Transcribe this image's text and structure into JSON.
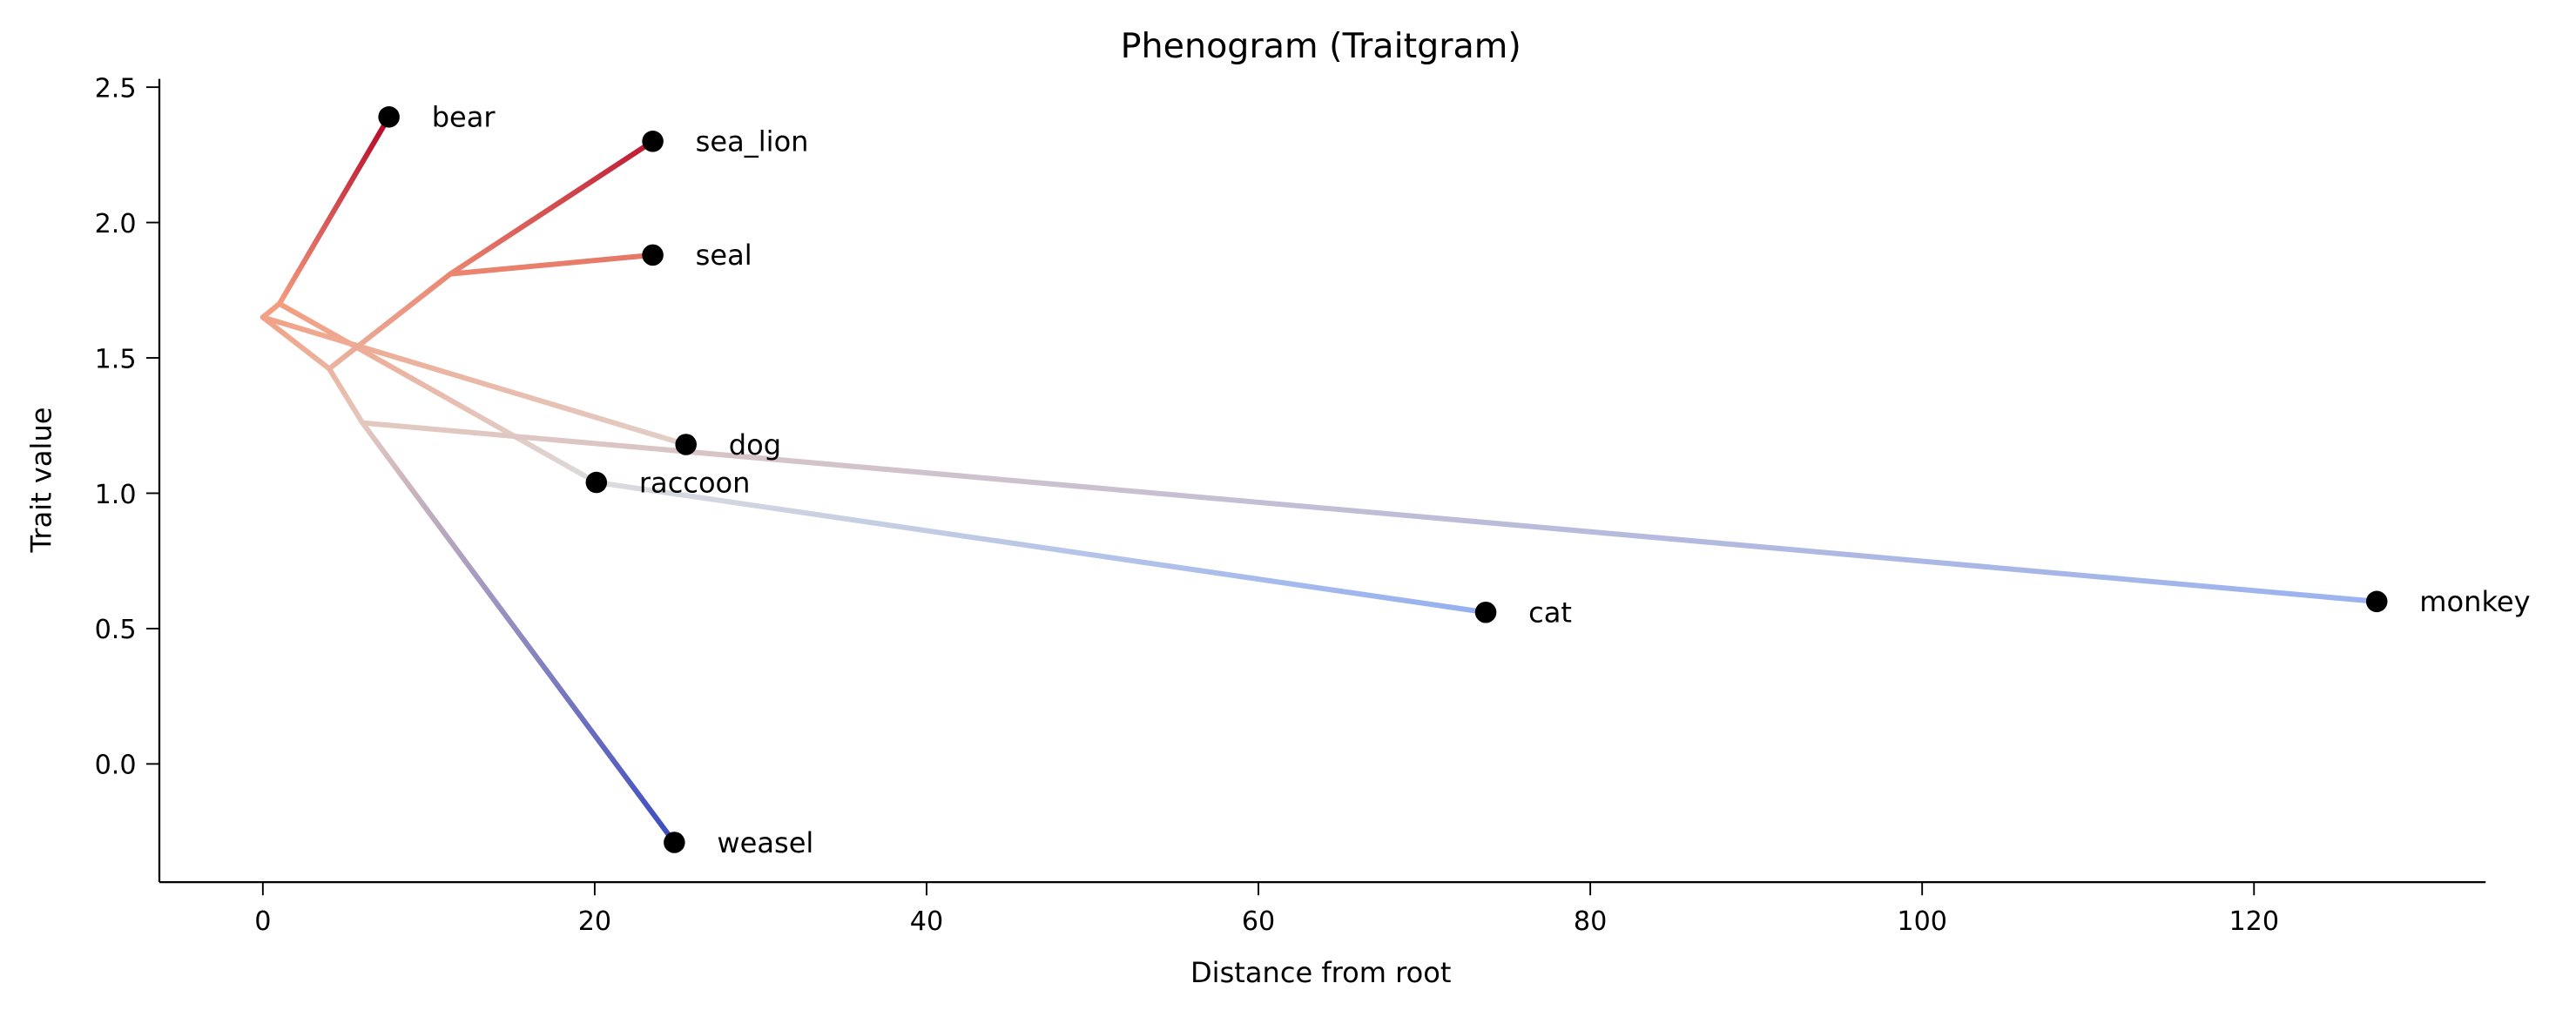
{
  "chart_data": {
    "type": "line",
    "title": "Phenogram (Traitgram)",
    "xlabel": "Distance from root",
    "ylabel": "Trait value",
    "xlim": [
      -6.2,
      133.8
    ],
    "ylim": [
      -0.44,
      2.53
    ],
    "xticks": [
      0,
      20,
      40,
      60,
      80,
      100,
      120
    ],
    "xtick_labels": [
      "0",
      "20",
      "40",
      "60",
      "80",
      "100",
      "120"
    ],
    "yticks": [
      0.0,
      0.5,
      1.0,
      1.5,
      2.0,
      2.5
    ],
    "ytick_labels": [
      "0.0",
      "0.5",
      "1.0",
      "1.5",
      "2.0",
      "2.5"
    ],
    "grid": false,
    "colormap": "coolwarm",
    "nodes": {
      "root": {
        "x": 0,
        "y": 1.65
      },
      "n1": {
        "x": 1.0,
        "y": 1.7
      },
      "n2": {
        "x": 4.0,
        "y": 1.46
      },
      "n3": {
        "x": 11.3,
        "y": 1.81
      },
      "n4": {
        "x": 6.0,
        "y": 1.26
      }
    },
    "tips": [
      {
        "name": "bear",
        "x": 7.6,
        "y": 2.39
      },
      {
        "name": "sea_lion",
        "x": 23.5,
        "y": 2.3
      },
      {
        "name": "seal",
        "x": 23.5,
        "y": 1.88
      },
      {
        "name": "dog",
        "x": 25.5,
        "y": 1.18
      },
      {
        "name": "raccoon",
        "x": 20.1,
        "y": 1.04
      },
      {
        "name": "cat",
        "x": 73.7,
        "y": 0.56
      },
      {
        "name": "monkey",
        "x": 127.4,
        "y": 0.6
      },
      {
        "name": "weasel",
        "x": 24.8,
        "y": -0.29
      }
    ],
    "edges": [
      [
        "root",
        "n1"
      ],
      [
        "n1",
        "bear"
      ],
      [
        "n1",
        "raccoon"
      ],
      [
        "raccoon",
        "cat"
      ],
      [
        "root",
        "dog"
      ],
      [
        "root",
        "n2"
      ],
      [
        "n2",
        "n3"
      ],
      [
        "n3",
        "sea_lion"
      ],
      [
        "n3",
        "seal"
      ],
      [
        "n2",
        "n4"
      ],
      [
        "n4",
        "monkey"
      ],
      [
        "n4",
        "weasel"
      ]
    ]
  }
}
